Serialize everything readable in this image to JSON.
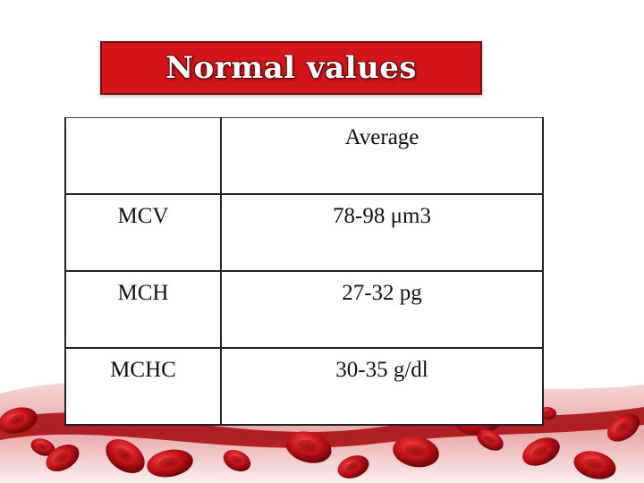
{
  "slide": {
    "title": "Normal values",
    "table": {
      "header": [
        "",
        "Average"
      ],
      "rows": [
        {
          "label": "MCV",
          "value": "78-98 μm3"
        },
        {
          "label": "MCH",
          "value": "27-32 pg"
        },
        {
          "label": "MCHC",
          "value": "30-35 g/dl"
        }
      ]
    },
    "colors": {
      "banner_red": "#d2161b",
      "cell_red": "#c4121a",
      "border": "#222222"
    },
    "decoration": "red-blood-cells-band"
  }
}
